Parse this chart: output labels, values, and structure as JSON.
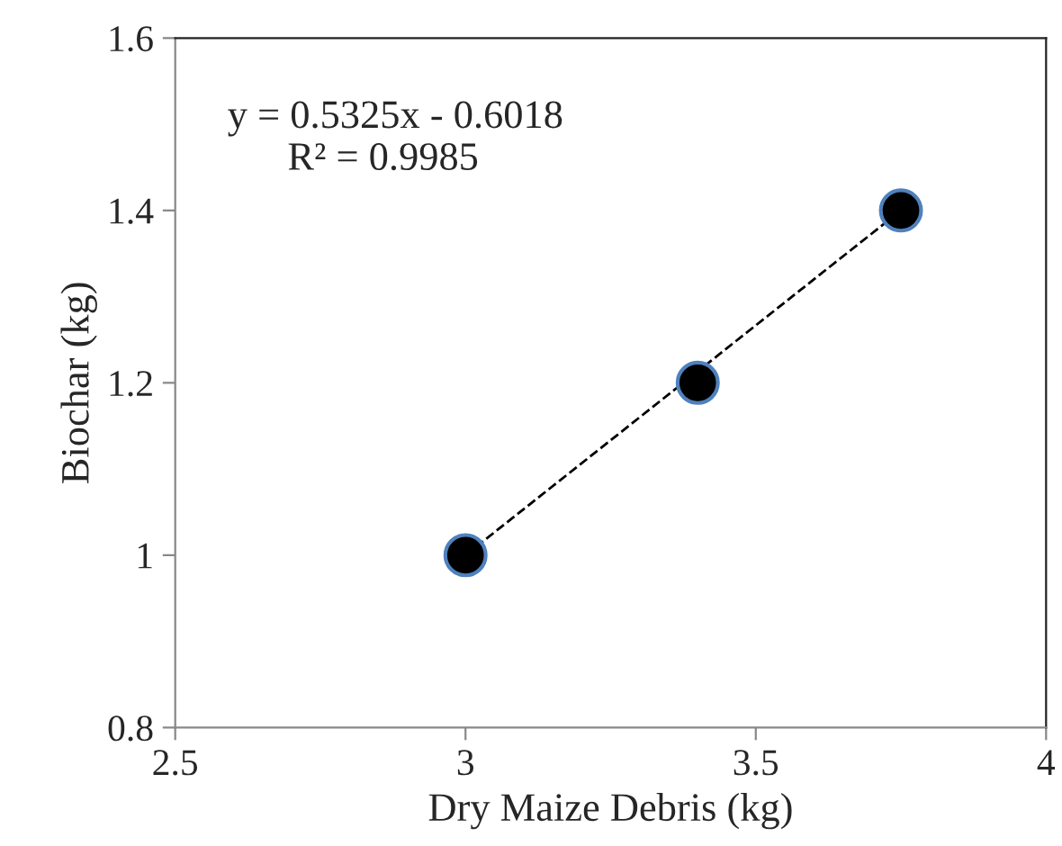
{
  "chart_data": {
    "type": "scatter",
    "xlabel": "Dry Maize Debris (kg)",
    "ylabel": "Biochar (kg)",
    "series": [
      {
        "color": "#000000",
        "x": [
          3,
          3.4,
          3.75
        ],
        "values": [
          1,
          1.2,
          1.4
        ],
        "marker": "circle"
      },
      {
        "type": "line",
        "color": "#000000",
        "x": [
          3,
          3.75
        ],
        "values": [
          1,
          1.4
        ],
        "line_style": "dashed",
        "marker": "none"
      }
    ],
    "annotations": [
      "y = 0.5325x - 0.6018\n      R² = 0.9985"
    ],
    "xlim": [
      2.5,
      4
    ],
    "xticks": [
      {
        "value": 2.5,
        "label": "2.5"
      },
      3,
      {
        "value": 3.5,
        "label": "3.5"
      },
      4
    ],
    "ylim": [
      0.8,
      1.6
    ],
    "yticks": [
      {
        "value": 0.8,
        "label": "0.8"
      },
      1,
      {
        "value": 1.2,
        "label": "1.2"
      },
      {
        "value": 1.4,
        "label": "1.4"
      },
      {
        "value": 1.6,
        "label": "1.6"
      }
    ],
    "grid": false,
    "legend": false
  }
}
